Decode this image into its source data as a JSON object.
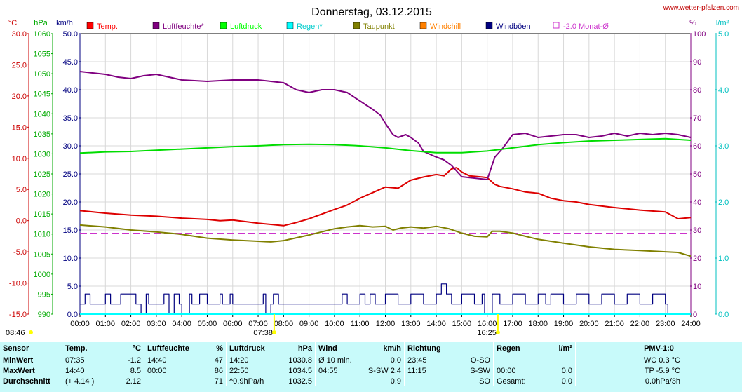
{
  "chart_data": {
    "type": "line",
    "title": "Donnerstag, 03.12.2015",
    "x_ticks": [
      "00:00",
      "01:00",
      "02:00",
      "03:00",
      "04:00",
      "05:00",
      "06:00",
      "07:00",
      "08:00",
      "09:00",
      "10:00",
      "11:00",
      "12:00",
      "13:00",
      "14:00",
      "15:00",
      "16:00",
      "17:00",
      "18:00",
      "19:00",
      "20:00",
      "21:00",
      "22:00",
      "23:00",
      "24:00"
    ],
    "xlim": [
      0,
      24
    ],
    "axes": [
      {
        "id": "temp",
        "unit": "°C",
        "color": "#cc0000",
        "side": "left",
        "min": -15,
        "max": 30,
        "ticks": [
          "30.0",
          "25.0",
          "20.0",
          "15.0",
          "10.0",
          "5.0",
          "0.0",
          "-5.0",
          "-10.0",
          "-15.0"
        ]
      },
      {
        "id": "press",
        "unit": "hPa",
        "color": "#00aa00",
        "side": "left",
        "min": 990,
        "max": 1060,
        "ticks": [
          "1060",
          "1055",
          "1050",
          "1045",
          "1040",
          "1035",
          "1030",
          "1025",
          "1020",
          "1015",
          "1010",
          "1005",
          "1000",
          "995",
          "990"
        ]
      },
      {
        "id": "wind",
        "unit": "km/h",
        "color": "#000080",
        "side": "left",
        "min": 0,
        "max": 50,
        "ticks": [
          "50.0",
          "45.0",
          "40.0",
          "35.0",
          "30.0",
          "25.0",
          "20.0",
          "15.0",
          "10.0",
          "5.0",
          "0.0"
        ]
      },
      {
        "id": "hum",
        "unit": "%",
        "color": "#800080",
        "side": "right",
        "min": 0,
        "max": 100,
        "ticks": [
          "100",
          "90",
          "80",
          "70",
          "60",
          "50",
          "40",
          "30",
          "20",
          "10",
          "0"
        ]
      },
      {
        "id": "rain",
        "unit": "l/m²",
        "color": "#00c0c0",
        "side": "right",
        "min": 0,
        "max": 5,
        "ticks": [
          "5.0",
          "4.0",
          "3.0",
          "2.0",
          "1.0",
          "0.0"
        ]
      }
    ],
    "legend": [
      {
        "name": "Temp.",
        "color": "#ff0000",
        "style": "fill"
      },
      {
        "name": "Luftfeuchte*",
        "color": "#800080",
        "style": "fill"
      },
      {
        "name": "Luftdruck",
        "color": "#00ff00",
        "style": "fill"
      },
      {
        "name": "Regen*",
        "color": "#00ffff",
        "style": "fill"
      },
      {
        "name": "Taupunkt",
        "color": "#808000",
        "style": "fill"
      },
      {
        "name": "Windchill",
        "color": "#ff8000",
        "style": "fill"
      },
      {
        "name": "Windböen",
        "color": "#000080",
        "style": "fill"
      },
      {
        "name": "-2.0 Monat-Ø",
        "color": "#cc33cc",
        "style": "outline"
      }
    ],
    "time_markers": [
      {
        "label": "08:46",
        "x": -1.4,
        "row": 1
      },
      {
        "label": "07:38",
        "x": 7.63,
        "row": 0
      },
      {
        "label": "16:25",
        "x": 16.42,
        "row": 0
      }
    ],
    "reference_line": {
      "axis": "temp",
      "value": -2.0,
      "color": "#cc33cc"
    },
    "series": [
      {
        "name": "Temp.",
        "axis": "temp",
        "color": "#dd0000",
        "x": [
          0,
          1,
          2,
          3,
          4,
          5,
          5.5,
          6,
          7,
          7.5,
          8,
          8.5,
          9,
          10,
          10.5,
          11,
          11.5,
          12,
          12.5,
          13,
          13.5,
          14,
          14.3,
          14.6,
          14.8,
          15,
          15.3,
          15.8,
          16,
          16.3,
          16.5,
          17,
          17.5,
          18,
          18.5,
          19,
          19.5,
          20,
          21,
          22,
          23,
          23.5,
          24
        ],
        "y": [
          1.6,
          1.2,
          0.9,
          0.7,
          0.4,
          0.2,
          0.0,
          0.1,
          -0.4,
          -0.6,
          -0.8,
          -0.3,
          0.3,
          1.8,
          2.5,
          3.6,
          4.5,
          5.4,
          5.2,
          6.5,
          7.0,
          7.4,
          7.2,
          8.3,
          8.5,
          7.8,
          7.2,
          7.0,
          6.9,
          5.8,
          5.5,
          5.1,
          4.6,
          4.4,
          3.6,
          3.2,
          3.0,
          2.6,
          2.1,
          1.7,
          1.4,
          0.3,
          0.5
        ]
      },
      {
        "name": "Luftfeuchte*",
        "axis": "hum",
        "color": "#800080",
        "x": [
          0,
          0.5,
          1,
          1.5,
          2,
          2.5,
          3,
          4,
          5,
          6,
          7,
          7.5,
          8,
          8.5,
          9,
          9.5,
          10,
          10.5,
          11,
          11.5,
          11.8,
          12,
          12.3,
          12.5,
          12.8,
          13,
          13.3,
          13.5,
          14,
          14.3,
          14.6,
          15,
          15.5,
          16,
          16.3,
          16.6,
          17,
          17.5,
          18,
          18.5,
          19,
          19.5,
          20,
          20.5,
          21,
          21.5,
          22,
          22.5,
          23,
          23.5,
          24
        ],
        "y": [
          86.5,
          86,
          85.5,
          84.5,
          84,
          85,
          85.5,
          83.5,
          83,
          83.5,
          83.5,
          83,
          82.5,
          80,
          79,
          80,
          80,
          79,
          76,
          73,
          71,
          68,
          64,
          63,
          64,
          63,
          61,
          58,
          56,
          55,
          53,
          49,
          48.5,
          48,
          56,
          59,
          64,
          64.5,
          63,
          63.5,
          64,
          64,
          63,
          63.5,
          64.5,
          63.5,
          64.5,
          64,
          64.5,
          64,
          63
        ]
      },
      {
        "name": "Luftdruck",
        "axis": "press",
        "color": "#00dd00",
        "x": [
          0,
          1,
          2,
          3,
          4,
          5,
          6,
          7,
          8,
          9,
          10,
          11,
          12,
          13,
          14,
          15,
          16,
          17,
          18,
          19,
          20,
          21,
          22,
          23,
          24
        ],
        "y": [
          1030.2,
          1030.5,
          1030.6,
          1030.9,
          1031.2,
          1031.5,
          1031.8,
          1032.0,
          1032.3,
          1032.4,
          1032.3,
          1032.0,
          1031.5,
          1030.8,
          1030.3,
          1030.3,
          1030.7,
          1031.5,
          1032.3,
          1032.8,
          1033.2,
          1033.4,
          1033.6,
          1033.8,
          1033.4
        ]
      },
      {
        "name": "Taupunkt",
        "axis": "temp",
        "color": "#808000",
        "x": [
          0,
          1,
          2,
          3,
          4,
          5,
          6,
          7,
          7.5,
          8,
          9,
          10,
          10.5,
          11,
          11.5,
          12,
          12.3,
          12.6,
          13,
          13.5,
          14,
          14.5,
          15,
          15.5,
          16,
          16.2,
          16.5,
          17,
          17.5,
          18,
          19,
          20,
          21,
          22,
          23,
          23.5,
          24
        ],
        "y": [
          -0.7,
          -1.0,
          -1.5,
          -1.8,
          -2.2,
          -2.8,
          -3.1,
          -3.3,
          -3.4,
          -3.2,
          -2.3,
          -1.3,
          -1.0,
          -0.8,
          -1.0,
          -0.9,
          -1.5,
          -1.2,
          -1.0,
          -1.2,
          -0.9,
          -1.3,
          -2.0,
          -2.5,
          -2.6,
          -1.7,
          -1.7,
          -2.0,
          -2.5,
          -3.0,
          -3.6,
          -4.2,
          -4.6,
          -4.8,
          -5.0,
          -5.1,
          -5.7
        ]
      },
      {
        "name": "Windböen",
        "axis": "wind",
        "color": "#000080",
        "style": "step",
        "x": [
          0,
          0.2,
          0.4,
          1,
          1.2,
          1.6,
          2.2,
          2.4,
          2.6,
          2.7,
          3.3,
          3.5,
          3.7,
          3.9,
          4,
          4.3,
          4.4,
          4.7,
          5,
          5.5,
          5.6,
          5.9,
          6,
          7.2,
          7.3,
          7.5,
          7.6,
          7.8,
          8,
          9,
          10,
          10.3,
          10.5,
          11,
          11.2,
          11.4,
          11.6,
          12,
          12.5,
          13,
          13.5,
          14,
          14.2,
          14.4,
          14.6,
          15,
          15.5,
          15.8,
          15.9,
          16.2,
          16.5,
          17,
          17.5,
          18,
          18.3,
          18.5,
          19,
          19.5,
          20,
          20.5,
          21,
          21.5,
          22,
          22.5,
          23,
          23.1,
          23.4,
          24
        ],
        "y": [
          1.8,
          3.6,
          1.8,
          3.6,
          1.8,
          3.6,
          1.8,
          0,
          3.6,
          1.8,
          3.6,
          0,
          3.6,
          1.8,
          0,
          3.6,
          1.8,
          3.6,
          1.8,
          3.6,
          1.8,
          3.6,
          1.8,
          3.6,
          0,
          1.8,
          3.6,
          1.8,
          1.8,
          1.8,
          1.8,
          3.6,
          1.8,
          3.6,
          1.8,
          3.6,
          1.8,
          3.6,
          1.8,
          3.6,
          1.8,
          3.6,
          5.4,
          3.6,
          1.8,
          3.6,
          1.8,
          3.6,
          0,
          3.6,
          1.8,
          3.6,
          1.8,
          3.6,
          1.8,
          3.6,
          1.8,
          3.6,
          1.8,
          3.6,
          1.8,
          3.6,
          1.8,
          3.6,
          1.8,
          0,
          0,
          0
        ]
      },
      {
        "name": "Regen*",
        "axis": "rain",
        "color": "#00ffff",
        "x": [
          0,
          24
        ],
        "y": [
          0,
          0
        ]
      }
    ]
  },
  "site": "www.wetter-pfalzen.com",
  "stats": {
    "headers": {
      "sensor": "Sensor",
      "temp": "Temp.",
      "temp_unit": "°C",
      "hum": "Luftfeuchte",
      "hum_unit": "%",
      "press": "Luftdruck",
      "press_unit": "hPa",
      "wind": "Wind",
      "wind_unit": "km/h",
      "dir": "Richtung",
      "rain": "Regen",
      "rain_unit": "l/m²",
      "pmv": "PMV-1:0"
    },
    "rows": [
      {
        "label": "MinWert",
        "temp_time": "07:35",
        "temp_val": "-1.2",
        "hum_time": "14:40",
        "hum_val": "47",
        "press_time": "14:20",
        "press_val": "1030.8",
        "wind_time": "Ø 10 min.",
        "wind_val": "0.0",
        "dir_time": "23:45",
        "dir_val": "O-SO",
        "rain_time": "",
        "rain_val": "",
        "pmv": "WC 0.3 °C"
      },
      {
        "label": "MaxWert",
        "temp_time": "14:40",
        "temp_val": "8.5",
        "hum_time": "00:00",
        "hum_val": "86",
        "press_time": "22:50",
        "press_val": "1034.5",
        "wind_time": "04:55",
        "wind_val": "S-SW 2.4",
        "dir_time": "11:15",
        "dir_val": "S-SW",
        "rain_time": "00:00",
        "rain_val": "0.0",
        "pmv": "TP -5.9 °C"
      },
      {
        "label": "Durchschnitt",
        "temp_time": "(+ 4.14 )",
        "temp_val": "2.12",
        "hum_time": "",
        "hum_val": "71",
        "press_time": "^0.9hPa/h",
        "press_val": "1032.5",
        "wind_time": "",
        "wind_val": "0.9",
        "dir_time": "",
        "dir_val": "SO",
        "rain_time": "Gesamt:",
        "rain_val": "0.0",
        "pmv": "0.0hPa/3h"
      }
    ]
  }
}
